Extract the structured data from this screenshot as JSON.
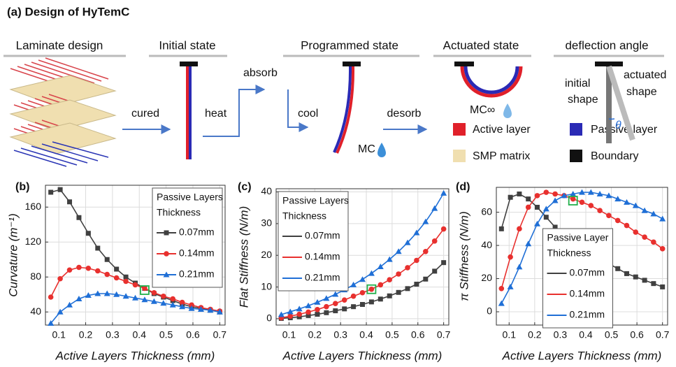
{
  "figure": {
    "title": "(a) Design of HyTemC",
    "headers": [
      "Laminate design",
      "Initial state",
      "Programmed state",
      "Actuated state",
      "deflection angle"
    ],
    "steps": [
      "cured",
      "heat",
      "absorb",
      "cool",
      "desorb"
    ],
    "moisture_labels": [
      "MC",
      "MC∞"
    ],
    "shape_labels": [
      "initial",
      "shape",
      "actuated",
      "shape",
      "θ"
    ],
    "legend": [
      "Active  layer",
      "Passive layer",
      "SMP matrix",
      "Boundary"
    ]
  },
  "chart_data": [
    {
      "type": "line",
      "panel": "(b)",
      "x_label": "Active Layers Thickness (mm)",
      "y_label": "Curvature (m⁻¹)",
      "x": [
        0.07,
        0.105,
        0.14,
        0.175,
        0.21,
        0.245,
        0.28,
        0.315,
        0.35,
        0.385,
        0.42,
        0.455,
        0.49,
        0.525,
        0.56,
        0.595,
        0.63,
        0.665,
        0.7
      ],
      "series": [
        {
          "name": "0.07mm",
          "color": "#404040",
          "marker": "square",
          "values": [
            177,
            180,
            166,
            148,
            130,
            113,
            100,
            89,
            80,
            73,
            67,
            61,
            57,
            53,
            49,
            46,
            44,
            42,
            40
          ]
        },
        {
          "name": "0.14mm",
          "color": "#e8302e",
          "marker": "circle",
          "values": [
            57,
            78,
            88,
            91,
            90,
            87,
            83,
            79,
            75,
            71,
            67,
            62,
            58,
            55,
            51,
            48,
            45,
            43,
            41
          ]
        },
        {
          "name": "0.21mm",
          "color": "#1f6fd6",
          "marker": "triangle",
          "values": [
            27,
            40,
            48,
            55,
            59,
            61,
            61,
            60,
            58,
            56,
            54,
            52,
            50,
            48,
            46,
            44,
            43,
            42,
            40
          ]
        }
      ],
      "highlight": [
        0.42,
        65
      ],
      "highlight_color": "#22b04b",
      "legend_title": [
        "Passive Layers",
        "Thickness"
      ],
      "legend_position": "upper right",
      "legend_markers": true,
      "xlim": [
        0.05,
        0.72
      ],
      "ylim": [
        25,
        185
      ],
      "xticks": [
        0.1,
        0.2,
        0.3,
        0.4,
        0.5,
        0.6,
        0.7
      ],
      "yticks": [
        40,
        80,
        120,
        160
      ],
      "grid": true
    },
    {
      "type": "line",
      "panel": "(c)",
      "x_label": "Active Layers Thickness (mm)",
      "y_label": "Flat Stiffness (N/m)",
      "x": [
        0.07,
        0.105,
        0.14,
        0.175,
        0.21,
        0.245,
        0.28,
        0.315,
        0.35,
        0.385,
        0.42,
        0.455,
        0.49,
        0.525,
        0.56,
        0.595,
        0.63,
        0.665,
        0.7
      ],
      "series": [
        {
          "name": "0.07mm",
          "color": "#404040",
          "marker": "square",
          "values": [
            0.1,
            0.3,
            0.6,
            1.0,
            1.4,
            1.9,
            2.5,
            3.1,
            3.8,
            4.5,
            5.3,
            6.2,
            7.2,
            8.3,
            9.5,
            10.9,
            12.5,
            15.0,
            17.7
          ]
        },
        {
          "name": "0.14mm",
          "color": "#e8302e",
          "marker": "circle",
          "values": [
            0.3,
            0.8,
            1.4,
            2.1,
            2.9,
            3.8,
            4.8,
            5.9,
            7.1,
            8.2,
            9.3,
            10.7,
            12.3,
            14.1,
            16.1,
            18.4,
            21.2,
            24.5,
            28.3
          ]
        },
        {
          "name": "0.21mm",
          "color": "#1f6fd6",
          "marker": "triangle",
          "values": [
            1.3,
            2.2,
            3.1,
            4.1,
            5.2,
            6.4,
            7.7,
            9.1,
            10.7,
            12.4,
            14.3,
            16.4,
            18.7,
            21.2,
            24.0,
            27.1,
            30.6,
            34.8,
            39.6
          ]
        }
      ],
      "highlight": [
        0.42,
        9.3
      ],
      "highlight_color": "#22b04b",
      "legend_title": [
        "Passive Layers",
        "Thickness"
      ],
      "legend_position": "upper left",
      "legend_markers": false,
      "xlim": [
        0.05,
        0.72
      ],
      "ylim": [
        -2,
        41
      ],
      "xticks": [
        0.1,
        0.2,
        0.3,
        0.4,
        0.5,
        0.6,
        0.7
      ],
      "yticks": [
        0,
        10,
        20,
        30,
        40
      ],
      "grid": true
    },
    {
      "type": "line",
      "panel": "(d)",
      "x_label": "Active Layers Thickness (mm)",
      "y_label": "π Stiffness (N/m)",
      "x": [
        0.07,
        0.105,
        0.14,
        0.175,
        0.21,
        0.245,
        0.28,
        0.315,
        0.35,
        0.385,
        0.42,
        0.455,
        0.49,
        0.525,
        0.56,
        0.595,
        0.63,
        0.665,
        0.7
      ],
      "series": [
        {
          "name": "0.07mm",
          "color": "#404040",
          "marker": "square",
          "values": [
            50,
            69,
            71,
            68,
            63,
            57,
            51,
            47,
            43,
            39,
            35,
            32,
            29,
            26,
            23,
            21,
            19,
            17,
            15
          ]
        },
        {
          "name": "0.14mm",
          "color": "#e8302e",
          "marker": "circle",
          "values": [
            14,
            33,
            50,
            63,
            70,
            72,
            71,
            70,
            68,
            66,
            64,
            61,
            58,
            55,
            52,
            48,
            45,
            42,
            38
          ]
        },
        {
          "name": "0.21mm",
          "color": "#1f6fd6",
          "marker": "triangle",
          "values": [
            5,
            15,
            27,
            41,
            53,
            62,
            67,
            70,
            71,
            72,
            72,
            71,
            70,
            68,
            66,
            64,
            61,
            59,
            56
          ]
        }
      ],
      "highlight": [
        0.35,
        67
      ],
      "highlight_color": "#22b04b",
      "legend_title": [
        "Passive Layer",
        "Thickness"
      ],
      "legend_position": "lower center",
      "legend_markers": false,
      "xlim": [
        0.05,
        0.72
      ],
      "ylim": [
        -8,
        75
      ],
      "xticks": [
        0.1,
        0.2,
        0.3,
        0.4,
        0.5,
        0.6,
        0.7
      ],
      "yticks": [
        0,
        20,
        40,
        60
      ],
      "grid": true
    }
  ]
}
